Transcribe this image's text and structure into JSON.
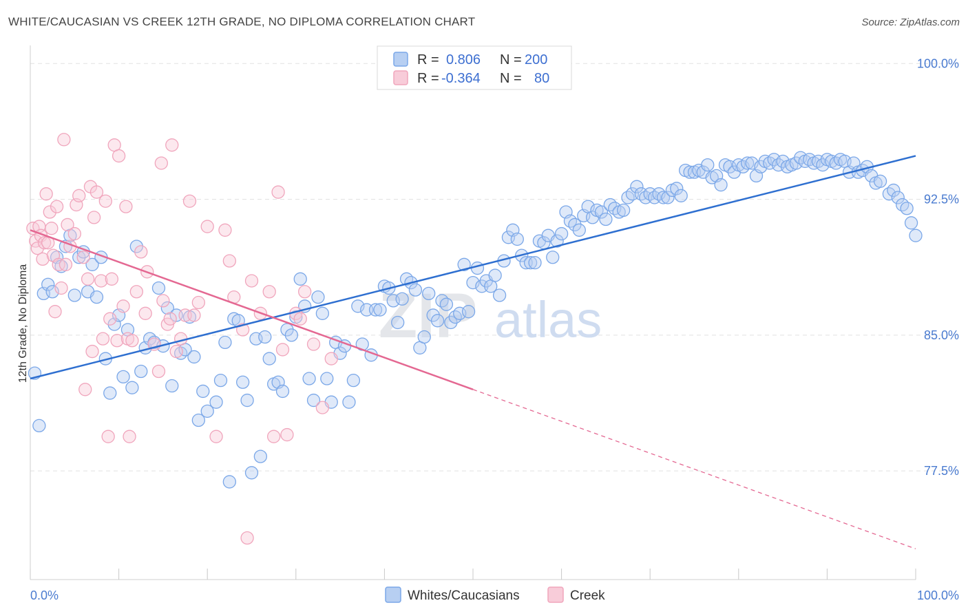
{
  "title": "WHITE/CAUCASIAN VS CREEK 12TH GRADE, NO DIPLOMA CORRELATION CHART",
  "source": "Source: ZipAtlas.com",
  "watermark": {
    "zip": "ZIP",
    "atlas": "atlas"
  },
  "colors": {
    "blue": "#7aa7e8",
    "blue_fill": "#b7cff2",
    "blue_line": "#2e6fd0",
    "pink": "#f0a5bc",
    "pink_fill": "#f8ccd9",
    "pink_line": "#e46892"
  },
  "legend": {
    "rows": [
      {
        "r_label": "R =",
        "r_value": "0.806",
        "n_label": "N =",
        "n_value": "200"
      },
      {
        "r_label": "R =",
        "r_value": "-0.364",
        "n_label": "N =",
        "n_value": "80"
      }
    ]
  },
  "bottom_legend": [
    "Whites/Caucasians",
    "Creek"
  ],
  "chart_data": {
    "type": "scatter",
    "title": "WHITE/CAUCASIAN VS CREEK 12TH GRADE, NO DIPLOMA CORRELATION CHART",
    "xlabel": "",
    "ylabel": "12th Grade, No Diploma",
    "x_tick_labels": [
      "0.0%",
      "100.0%"
    ],
    "y_tick_labels": [
      "100.0%",
      "92.5%",
      "85.0%",
      "77.5%"
    ],
    "y_ticks": [
      100.0,
      92.5,
      85.0,
      77.5
    ],
    "xlim": [
      0,
      100
    ],
    "ylim": [
      71.5,
      101
    ],
    "grid": true,
    "legend_position": "top-center",
    "series": [
      {
        "name": "Whites/Caucasians",
        "trend": {
          "x": [
            0,
            100
          ],
          "y": [
            82.6,
            94.9
          ]
        },
        "points": [
          [
            0.5,
            82.9
          ],
          [
            1,
            80.0
          ],
          [
            1.5,
            87.3
          ],
          [
            2,
            87.8
          ],
          [
            2.5,
            87.4
          ],
          [
            3,
            89.3
          ],
          [
            3.5,
            88.8
          ],
          [
            4,
            89.9
          ],
          [
            4.5,
            90.5
          ],
          [
            5,
            87.2
          ],
          [
            5.5,
            89.3
          ],
          [
            6,
            89.6
          ],
          [
            6.5,
            87.4
          ],
          [
            7,
            88.9
          ],
          [
            7.5,
            87.1
          ],
          [
            8,
            89.3
          ],
          [
            8.5,
            83.7
          ],
          [
            9,
            81.8
          ],
          [
            9.5,
            85.6
          ],
          [
            10,
            86.1
          ],
          [
            10.5,
            82.7
          ],
          [
            11,
            85.3
          ],
          [
            11.5,
            82.1
          ],
          [
            12,
            89.9
          ],
          [
            12.5,
            83.0
          ],
          [
            13,
            84.3
          ],
          [
            13.5,
            84.8
          ],
          [
            14,
            84.6
          ],
          [
            14.5,
            87.6
          ],
          [
            15,
            84.4
          ],
          [
            15.5,
            86.5
          ],
          [
            16,
            82.2
          ],
          [
            16.5,
            86.1
          ],
          [
            17,
            84.0
          ],
          [
            17.5,
            84.2
          ],
          [
            18,
            86.0
          ],
          [
            18.5,
            83.8
          ],
          [
            19,
            80.3
          ],
          [
            19.5,
            81.9
          ],
          [
            20,
            80.8
          ],
          [
            21,
            81.3
          ],
          [
            21.5,
            82.5
          ],
          [
            22,
            84.6
          ],
          [
            22.5,
            76.9
          ],
          [
            23,
            85.9
          ],
          [
            23.5,
            85.8
          ],
          [
            24,
            82.4
          ],
          [
            24.5,
            81.4
          ],
          [
            25,
            77.4
          ],
          [
            25.5,
            84.8
          ],
          [
            26,
            78.3
          ],
          [
            26.5,
            84.9
          ],
          [
            27,
            83.7
          ],
          [
            27.5,
            82.3
          ],
          [
            28,
            82.4
          ],
          [
            28.5,
            81.9
          ],
          [
            29,
            85.3
          ],
          [
            29.5,
            85.0
          ],
          [
            30,
            86.0
          ],
          [
            30.5,
            88.1
          ],
          [
            31,
            86.6
          ],
          [
            31.5,
            82.6
          ],
          [
            32,
            81.4
          ],
          [
            32.5,
            87.1
          ],
          [
            33,
            86.2
          ],
          [
            33.5,
            82.6
          ],
          [
            34,
            81.3
          ],
          [
            34.5,
            84.6
          ],
          [
            35,
            84.0
          ],
          [
            35.5,
            84.4
          ],
          [
            36,
            81.3
          ],
          [
            36.5,
            82.5
          ],
          [
            37,
            86.6
          ],
          [
            37.5,
            84.5
          ],
          [
            38,
            86.4
          ],
          [
            38.5,
            83.9
          ],
          [
            39,
            86.4
          ],
          [
            39.5,
            86.4
          ],
          [
            40,
            87.7
          ],
          [
            40.5,
            87.6
          ],
          [
            41,
            86.9
          ],
          [
            41.5,
            85.7
          ],
          [
            42,
            87.0
          ],
          [
            42.5,
            88.1
          ],
          [
            43,
            87.9
          ],
          [
            43.5,
            87.5
          ],
          [
            44,
            84.3
          ],
          [
            44.5,
            84.9
          ],
          [
            45,
            87.3
          ],
          [
            45.5,
            86.1
          ],
          [
            46,
            85.8
          ],
          [
            46.5,
            86.9
          ],
          [
            47,
            86.7
          ],
          [
            47.5,
            85.7
          ],
          [
            48,
            86.0
          ],
          [
            48.5,
            86.2
          ],
          [
            49,
            88.9
          ],
          [
            49.5,
            86.3
          ],
          [
            50,
            87.9
          ],
          [
            50.5,
            88.7
          ],
          [
            51,
            87.7
          ],
          [
            51.5,
            88.0
          ],
          [
            52,
            87.7
          ],
          [
            52.5,
            88.3
          ],
          [
            53,
            87.2
          ],
          [
            53.5,
            89.1
          ],
          [
            54,
            90.4
          ],
          [
            54.5,
            90.8
          ],
          [
            55,
            90.3
          ],
          [
            55.5,
            89.4
          ],
          [
            56,
            89.0
          ],
          [
            56.5,
            89.0
          ],
          [
            57,
            89.0
          ],
          [
            57.5,
            90.2
          ],
          [
            58,
            90.1
          ],
          [
            58.5,
            90.5
          ],
          [
            59,
            89.3
          ],
          [
            59.5,
            90.2
          ],
          [
            60,
            90.6
          ],
          [
            60.5,
            91.8
          ],
          [
            61,
            91.3
          ],
          [
            61.5,
            91.1
          ],
          [
            62,
            90.8
          ],
          [
            62.5,
            91.6
          ],
          [
            63,
            92.1
          ],
          [
            63.5,
            91.5
          ],
          [
            64,
            91.9
          ],
          [
            64.5,
            91.8
          ],
          [
            65,
            91.4
          ],
          [
            65.5,
            92.2
          ],
          [
            66,
            92.0
          ],
          [
            66.5,
            91.8
          ],
          [
            67,
            91.9
          ],
          [
            67.5,
            92.6
          ],
          [
            68,
            92.8
          ],
          [
            68.5,
            93.2
          ],
          [
            69,
            92.8
          ],
          [
            69.5,
            92.6
          ],
          [
            70,
            92.8
          ],
          [
            70.5,
            92.6
          ],
          [
            71,
            92.8
          ],
          [
            71.5,
            92.6
          ],
          [
            72,
            92.6
          ],
          [
            72.5,
            93.0
          ],
          [
            73,
            93.1
          ],
          [
            73.5,
            92.7
          ],
          [
            74,
            94.1
          ],
          [
            74.5,
            94.0
          ],
          [
            75,
            94.0
          ],
          [
            75.5,
            94.1
          ],
          [
            76,
            94.0
          ],
          [
            76.5,
            94.4
          ],
          [
            77,
            93.7
          ],
          [
            77.5,
            93.8
          ],
          [
            78,
            93.3
          ],
          [
            78.5,
            94.4
          ],
          [
            79,
            94.3
          ],
          [
            79.5,
            94.0
          ],
          [
            80,
            94.4
          ],
          [
            80.5,
            94.3
          ],
          [
            81,
            94.5
          ],
          [
            81.5,
            94.5
          ],
          [
            82,
            93.8
          ],
          [
            82.5,
            94.3
          ],
          [
            83,
            94.6
          ],
          [
            83.5,
            94.5
          ],
          [
            84,
            94.7
          ],
          [
            84.5,
            94.4
          ],
          [
            85,
            94.6
          ],
          [
            85.5,
            94.3
          ],
          [
            86,
            94.4
          ],
          [
            86.5,
            94.5
          ],
          [
            87,
            94.8
          ],
          [
            87.5,
            94.6
          ],
          [
            88,
            94.7
          ],
          [
            88.5,
            94.5
          ],
          [
            89,
            94.6
          ],
          [
            89.5,
            94.4
          ],
          [
            90,
            94.7
          ],
          [
            90.5,
            94.6
          ],
          [
            91,
            94.5
          ],
          [
            91.5,
            94.7
          ],
          [
            92,
            94.6
          ],
          [
            92.5,
            94.0
          ],
          [
            93,
            94.5
          ],
          [
            93.5,
            94.0
          ],
          [
            94,
            94.1
          ],
          [
            94.5,
            94.3
          ],
          [
            95,
            93.8
          ],
          [
            95.5,
            93.4
          ],
          [
            96,
            93.5
          ],
          [
            97,
            92.8
          ],
          [
            97.5,
            93.0
          ],
          [
            98,
            92.6
          ],
          [
            98.5,
            92.2
          ],
          [
            99,
            92.0
          ],
          [
            99.5,
            91.2
          ],
          [
            100,
            90.5
          ]
        ]
      },
      {
        "name": "Creek",
        "trend": {
          "x": [
            0,
            100
          ],
          "y": [
            90.8,
            73.2
          ]
        },
        "trend_solid_until_x": 50,
        "points": [
          [
            0.3,
            90.9
          ],
          [
            0.6,
            90.2
          ],
          [
            0.8,
            89.8
          ],
          [
            1,
            91.0
          ],
          [
            1.2,
            90.5
          ],
          [
            1.4,
            89.2
          ],
          [
            1.6,
            90.1
          ],
          [
            1.8,
            92.8
          ],
          [
            2,
            90.1
          ],
          [
            2.2,
            91.8
          ],
          [
            2.4,
            90.9
          ],
          [
            2.6,
            89.4
          ],
          [
            2.8,
            86.3
          ],
          [
            3,
            92.1
          ],
          [
            3.2,
            88.9
          ],
          [
            3.5,
            87.6
          ],
          [
            3.8,
            95.8
          ],
          [
            4,
            88.9
          ],
          [
            4.2,
            91.1
          ],
          [
            4.5,
            89.9
          ],
          [
            5,
            90.6
          ],
          [
            5.2,
            92.2
          ],
          [
            5.5,
            92.7
          ],
          [
            6,
            89.3
          ],
          [
            6.2,
            82.0
          ],
          [
            6.5,
            88.1
          ],
          [
            6.8,
            93.2
          ],
          [
            7,
            84.1
          ],
          [
            7.2,
            91.5
          ],
          [
            7.5,
            92.9
          ],
          [
            8,
            88.0
          ],
          [
            8.2,
            84.8
          ],
          [
            8.5,
            92.4
          ],
          [
            8.8,
            79.4
          ],
          [
            9,
            85.9
          ],
          [
            9.2,
            88.1
          ],
          [
            9.5,
            95.5
          ],
          [
            9.8,
            84.7
          ],
          [
            10,
            94.9
          ],
          [
            10.5,
            86.6
          ],
          [
            10.8,
            92.1
          ],
          [
            11,
            84.8
          ],
          [
            11.2,
            79.4
          ],
          [
            11.5,
            84.7
          ],
          [
            12,
            87.4
          ],
          [
            12.5,
            89.6
          ],
          [
            13,
            86.2
          ],
          [
            13.2,
            88.5
          ],
          [
            14,
            84.5
          ],
          [
            14.5,
            83.0
          ],
          [
            14.8,
            94.5
          ],
          [
            15,
            86.9
          ],
          [
            15.5,
            85.6
          ],
          [
            15.8,
            85.9
          ],
          [
            16,
            95.5
          ],
          [
            16.5,
            84.1
          ],
          [
            17,
            84.8
          ],
          [
            17.5,
            86.1
          ],
          [
            18,
            92.4
          ],
          [
            18.5,
            86.1
          ],
          [
            19,
            86.8
          ],
          [
            20,
            91.0
          ],
          [
            21,
            79.4
          ],
          [
            22,
            90.8
          ],
          [
            22.5,
            89.1
          ],
          [
            23,
            87.1
          ],
          [
            24,
            85.3
          ],
          [
            24.5,
            73.8
          ],
          [
            25,
            88.0
          ],
          [
            26,
            86.2
          ],
          [
            27,
            87.4
          ],
          [
            27.5,
            79.4
          ],
          [
            28,
            92.9
          ],
          [
            28.5,
            84.2
          ],
          [
            29,
            79.5
          ],
          [
            30,
            86.2
          ],
          [
            30.5,
            85.9
          ],
          [
            31,
            87.4
          ],
          [
            32,
            84.5
          ],
          [
            33,
            81.0
          ],
          [
            34,
            83.7
          ]
        ]
      }
    ]
  }
}
